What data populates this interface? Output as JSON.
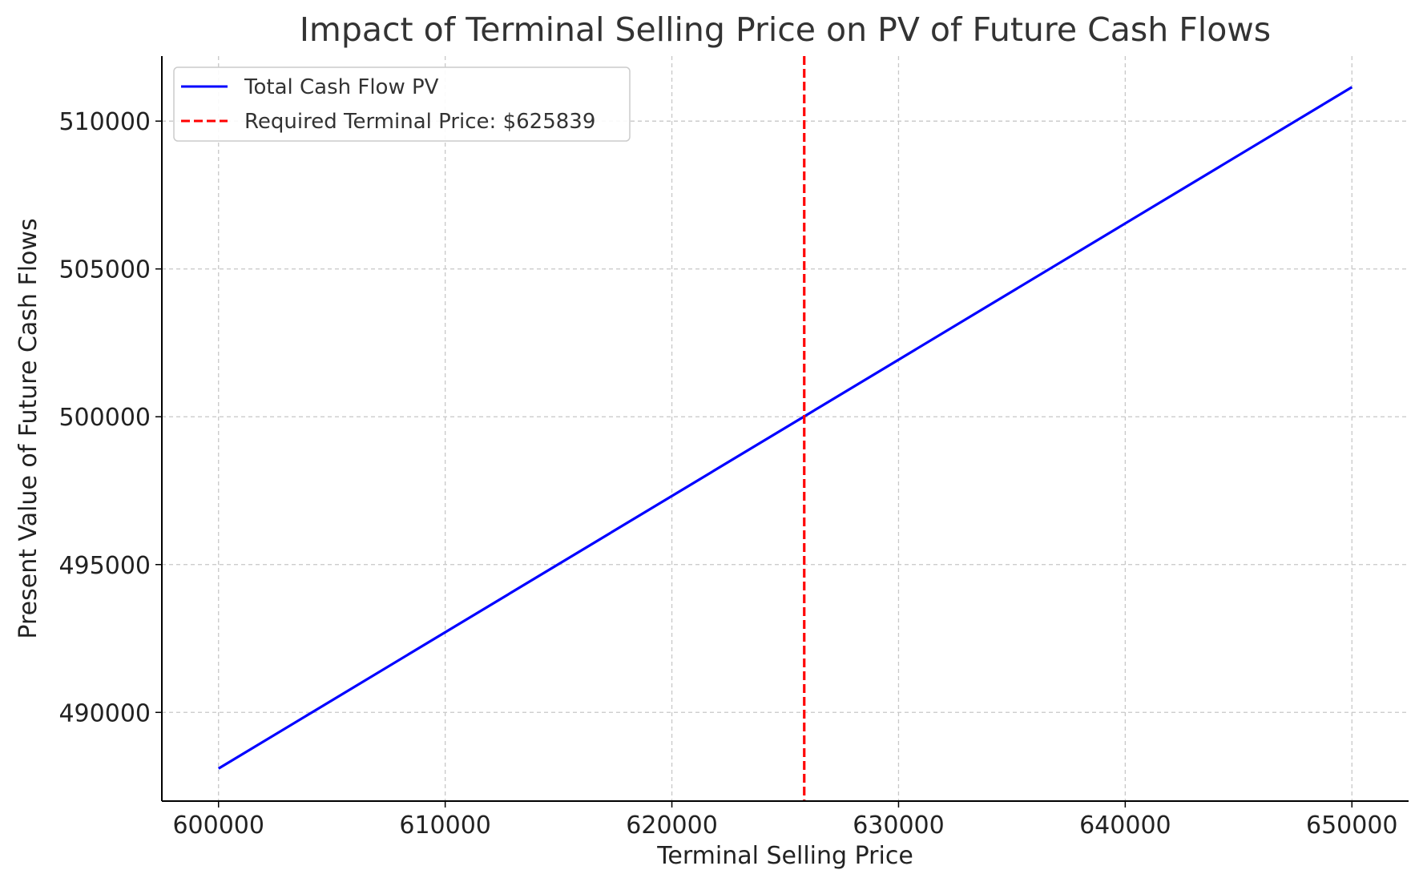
{
  "chart_data": {
    "type": "line",
    "title": "Impact of Terminal Selling Price on PV of Future Cash Flows",
    "xlabel": "Terminal Selling Price",
    "ylabel": "Present Value of Future Cash Flows",
    "xlim": [
      597500,
      652500
    ],
    "ylim": [
      487000,
      512200
    ],
    "xticks": [
      600000,
      610000,
      620000,
      630000,
      640000,
      650000
    ],
    "yticks": [
      490000,
      495000,
      500000,
      505000,
      510000
    ],
    "xtick_labels": [
      "600000",
      "610000",
      "620000",
      "630000",
      "640000",
      "650000"
    ],
    "ytick_labels": [
      "490000",
      "495000",
      "500000",
      "505000",
      "510000"
    ],
    "grid": true,
    "legend_position": "top-left",
    "series": [
      {
        "name": "Total Cash Flow PV",
        "color": "#0000ff",
        "style": "solid",
        "x": [
          600000,
          650000
        ],
        "y": [
          488100,
          511150
        ]
      }
    ],
    "vlines": [
      {
        "name": "Required Terminal Price: $625839",
        "x": 625839,
        "color": "#ff0000",
        "style": "dashed"
      }
    ]
  }
}
